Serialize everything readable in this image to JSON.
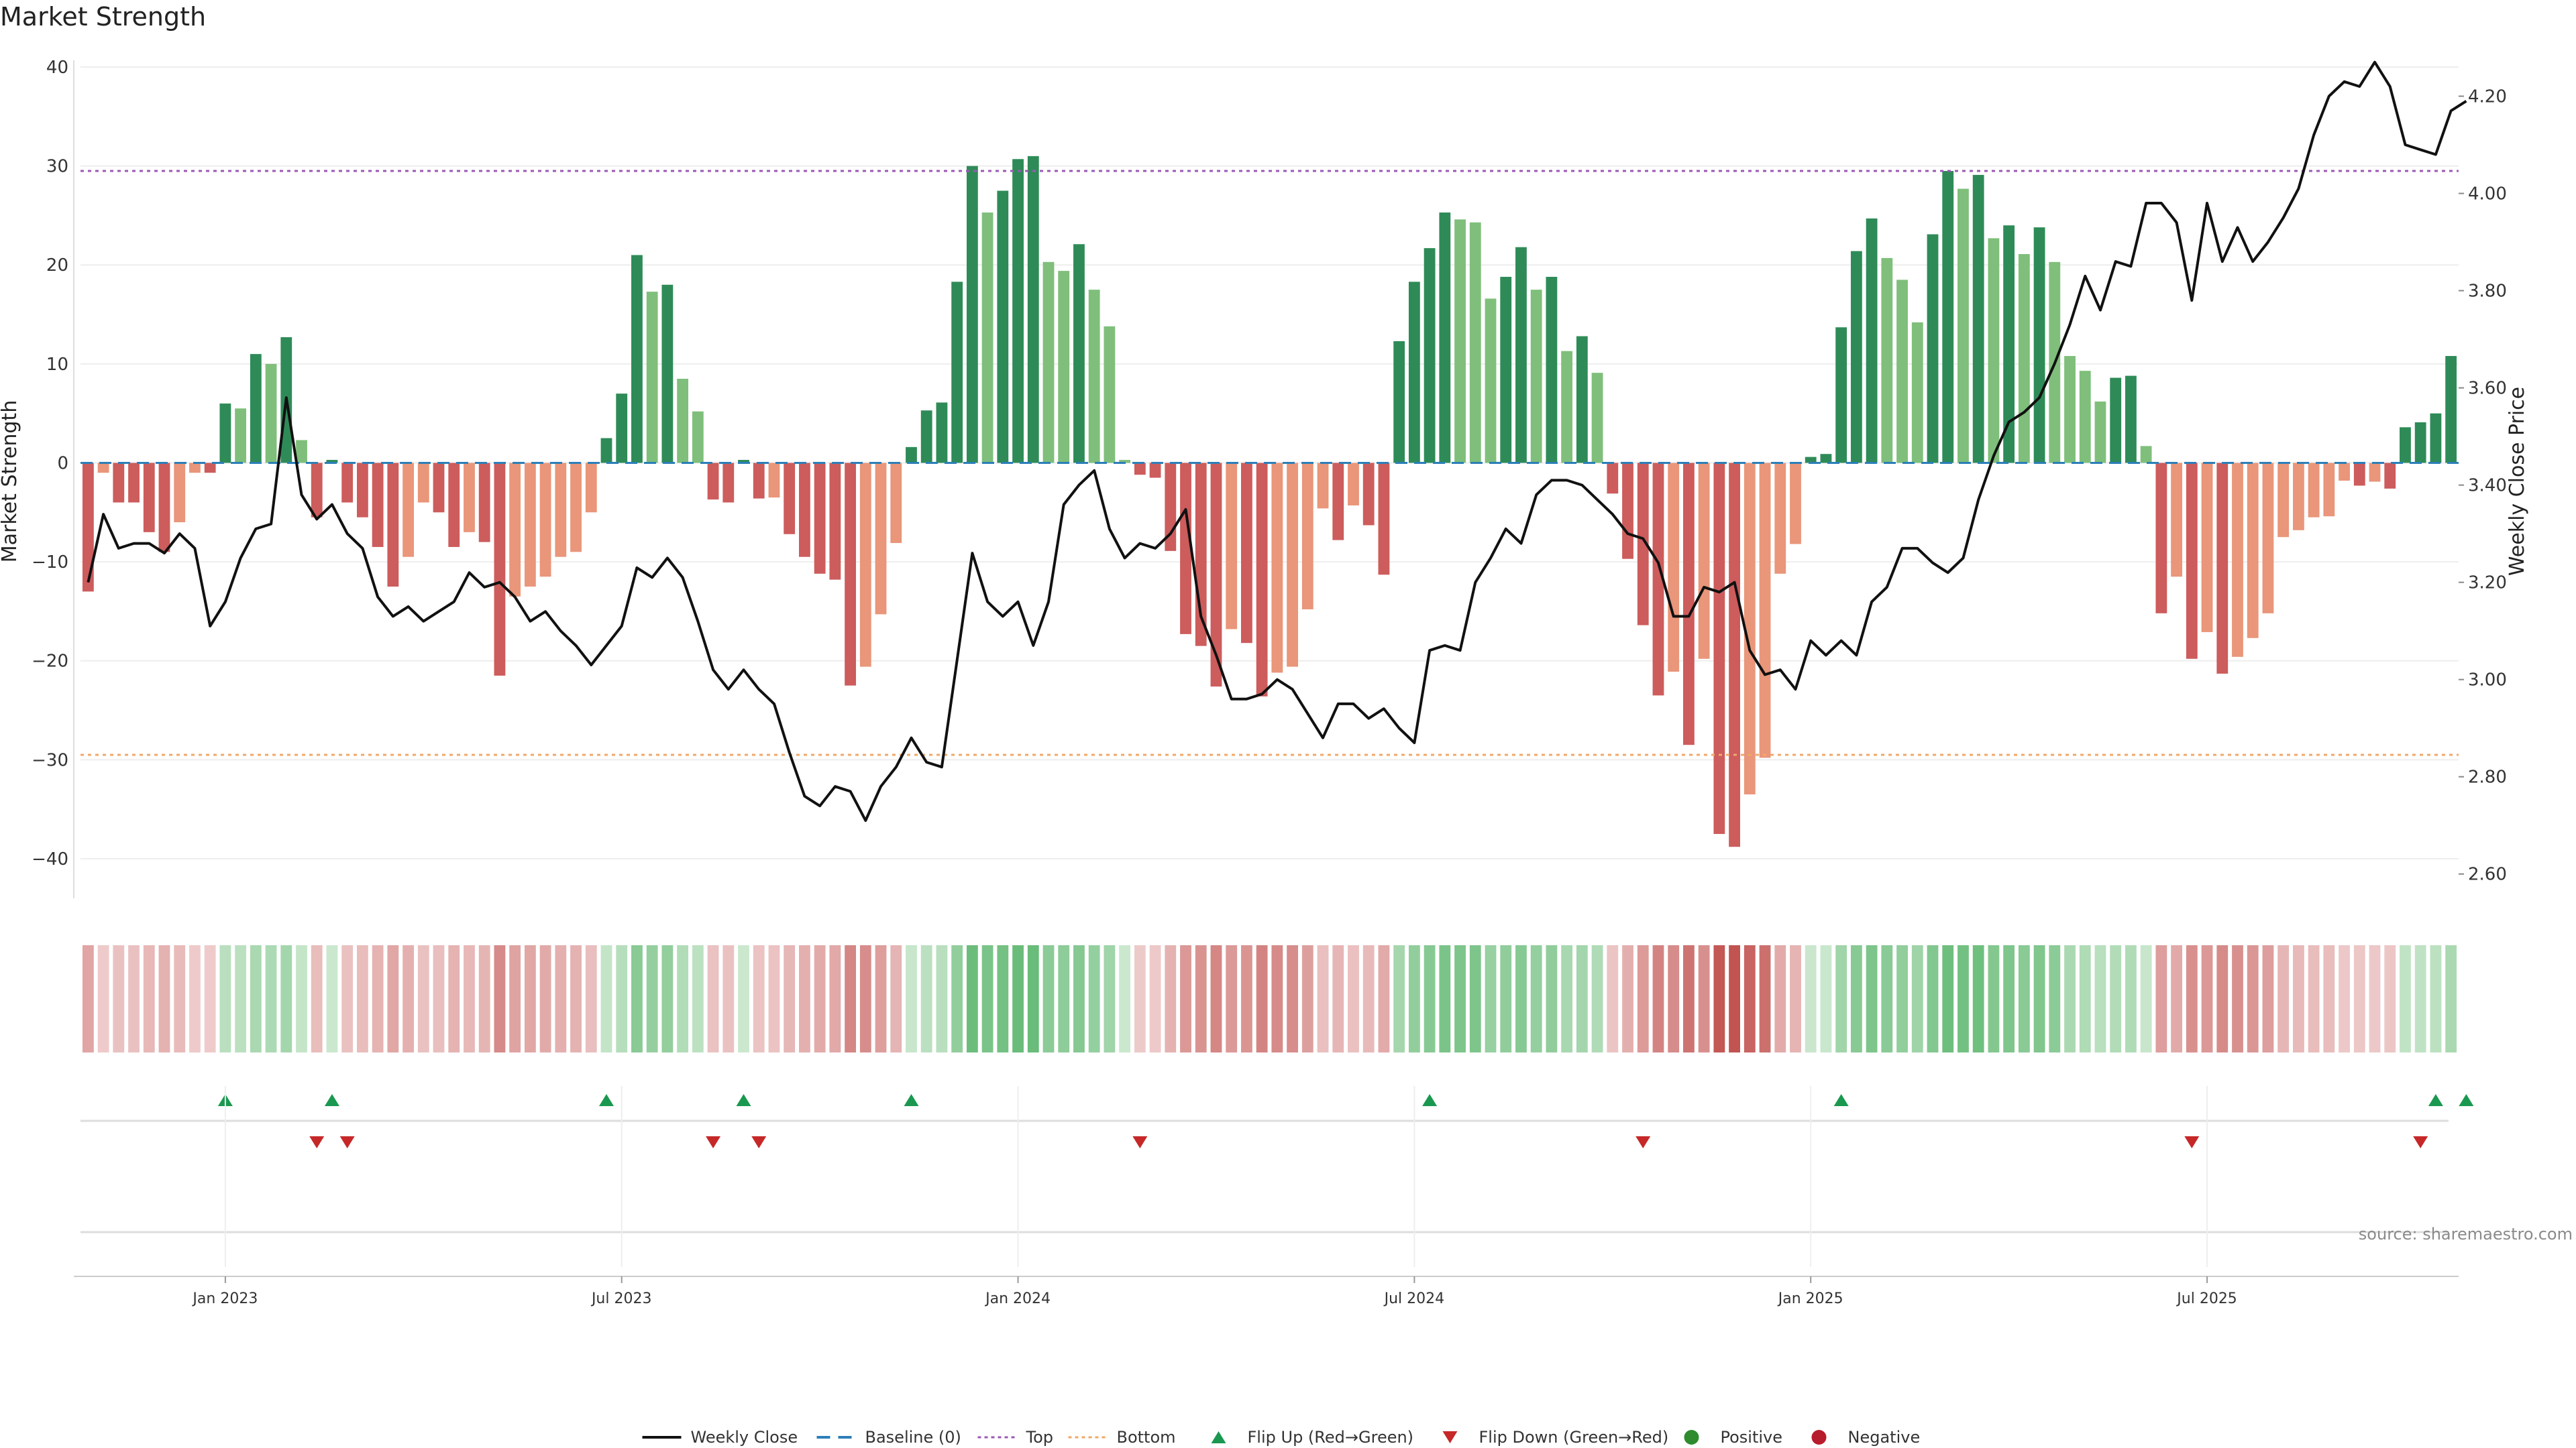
{
  "chart_data": {
    "type": "bar",
    "title": "Market Strength",
    "ylabel_left": "Market Strength",
    "ylabel_right": "Weekly Close Price",
    "source": "source: sharemaestro.com",
    "ylim_left": [
      -44,
      40
    ],
    "yticks_left": [
      40,
      30,
      20,
      10,
      0,
      -10,
      -20,
      -30,
      -40
    ],
    "ytick_labels_left": [
      "40",
      "30",
      "20",
      "10",
      "0",
      "−10",
      "−20",
      "−30",
      "−40"
    ],
    "ylim_right": [
      2.55,
      4.26
    ],
    "yticks_right": [
      4.2,
      4.0,
      3.8,
      3.6,
      3.4,
      3.2,
      3.0,
      2.8,
      2.6
    ],
    "ytick_labels_right": [
      "4.20",
      "4.00",
      "3.80",
      "3.60",
      "3.40",
      "3.20",
      "3.00",
      "2.80",
      "2.60"
    ],
    "x_ticks": [
      {
        "week": 9,
        "label": "Jan 2023"
      },
      {
        "week": 35,
        "label": "Jul 2023"
      },
      {
        "week": 61,
        "label": "Jan 2024"
      },
      {
        "week": 87,
        "label": "Jul 2024"
      },
      {
        "week": 113,
        "label": "Jan 2025"
      },
      {
        "week": 139,
        "label": "Jul 2025"
      }
    ],
    "start_week": "2022-10-31",
    "top_threshold": 29.5,
    "bottom_threshold": -29.5,
    "baseline": 0,
    "colors": {
      "strong_positive": "#2e8b57",
      "weak_positive": "#7fbf7b",
      "strong_negative": "#cd5c5c",
      "weak_negative": "#e9967a",
      "price_line": "#111111",
      "top_line": "#9b59b6",
      "bottom_line": "#f0a868",
      "baseline": "#2c7fb8",
      "flip_up": "#1a9850",
      "flip_down": "#c62828",
      "positive_dot": "#2e8b2e",
      "negative_dot": "#b71c2c"
    },
    "strength": [
      -13,
      -1,
      -4,
      -4,
      -7,
      -9,
      -6,
      -1,
      -1,
      6,
      5.5,
      11,
      10,
      12.7,
      2.3,
      -5.5,
      0.3,
      -4,
      -5.5,
      -8.5,
      -12.5,
      -9.5,
      -4,
      -5,
      -8.5,
      -7,
      -8,
      -21.5,
      -13.5,
      -12.5,
      -11.5,
      -9.5,
      -9,
      -5,
      2.5,
      7,
      21,
      17.3,
      18,
      8.5,
      5.2,
      -3.7,
      -4,
      0.3,
      -3.6,
      -3.5,
      -7.2,
      -9.5,
      -11.2,
      -11.8,
      -22.5,
      -20.6,
      -15.3,
      -8.1,
      1.6,
      5.3,
      6.1,
      18.3,
      30,
      25.3,
      27.5,
      30.7,
      31,
      20.3,
      19.4,
      22.1,
      17.5,
      13.8,
      0.3,
      -1.2,
      -1.5,
      -8.9,
      -17.3,
      -18.5,
      -22.6,
      -16.8,
      -18.2,
      -23.6,
      -21.2,
      -20.6,
      -14.8,
      -4.6,
      -7.8,
      -4.3,
      -6.3,
      -11.3,
      12.3,
      18.3,
      21.7,
      25.3,
      24.6,
      24.3,
      16.6,
      18.8,
      21.8,
      17.5,
      18.8,
      11.3,
      12.8,
      9.1,
      -3.1,
      -9.7,
      -16.4,
      -23.5,
      -21.1,
      -28.5,
      -19.8,
      -37.5,
      -38.8,
      -33.5,
      -29.8,
      -11.2,
      -8.2,
      0.6,
      0.9,
      13.7,
      21.4,
      24.7,
      20.7,
      18.5,
      14.2,
      23.1,
      29.5,
      27.7,
      29.1,
      22.7,
      24,
      21.1,
      23.8,
      20.3,
      10.8,
      9.3,
      6.2,
      8.6,
      8.8,
      1.7,
      -15.2,
      -11.5,
      -19.8,
      -17.1,
      -21.3,
      -19.6,
      -17.7,
      -15.2,
      -7.5,
      -6.8,
      -5.5,
      -5.4,
      -1.8,
      -2.3,
      -1.9,
      -2.6,
      3.6,
      4.1,
      5,
      10.8
    ],
    "price": [
      3.2,
      3.34,
      3.27,
      3.28,
      3.28,
      3.26,
      3.3,
      3.27,
      3.11,
      3.16,
      3.25,
      3.31,
      3.32,
      3.58,
      3.38,
      3.33,
      3.36,
      3.3,
      3.27,
      3.17,
      3.13,
      3.15,
      3.12,
      3.14,
      3.16,
      3.22,
      3.19,
      3.2,
      3.17,
      3.12,
      3.14,
      3.1,
      3.07,
      3.03,
      3.07,
      3.11,
      3.23,
      3.21,
      3.25,
      3.21,
      3.12,
      3.02,
      2.98,
      3.02,
      2.98,
      2.95,
      2.85,
      2.76,
      2.74,
      2.78,
      2.77,
      2.71,
      2.78,
      2.82,
      2.88,
      2.83,
      2.82,
      3.04,
      3.26,
      3.16,
      3.13,
      3.16,
      3.07,
      3.16,
      3.36,
      3.4,
      3.43,
      3.31,
      3.25,
      3.28,
      3.27,
      3.3,
      3.35,
      3.13,
      3.05,
      2.96,
      2.96,
      2.97,
      3,
      2.98,
      2.93,
      2.88,
      2.95,
      2.95,
      2.92,
      2.94,
      2.9,
      2.87,
      3.06,
      3.07,
      3.06,
      3.2,
      3.25,
      3.31,
      3.28,
      3.38,
      3.41,
      3.41,
      3.4,
      3.37,
      3.34,
      3.3,
      3.29,
      3.24,
      3.13,
      3.13,
      3.19,
      3.18,
      3.2,
      3.06,
      3.01,
      3.02,
      2.98,
      3.08,
      3.05,
      3.08,
      3.05,
      3.16,
      3.19,
      3.27,
      3.27,
      3.24,
      3.22,
      3.25,
      3.37,
      3.46,
      3.53,
      3.55,
      3.58,
      3.65,
      3.73,
      3.83,
      3.76,
      3.86,
      3.85,
      3.98,
      3.98,
      3.94,
      3.78,
      3.98,
      3.86,
      3.93,
      3.86,
      3.9,
      3.95,
      4.01,
      4.12,
      4.2,
      4.23,
      4.22,
      4.27,
      4.22,
      4.1,
      4.09,
      4.08,
      4.17,
      4.19
    ],
    "flip_up_weeks": [
      9,
      16,
      34,
      43,
      54,
      88,
      115,
      154,
      156
    ],
    "flip_down_weeks": [
      15,
      17,
      41,
      44,
      69,
      102,
      138,
      153
    ],
    "legend": [
      {
        "key": "line",
        "label": "Weekly Close"
      },
      {
        "key": "baseline",
        "label": "Baseline (0)"
      },
      {
        "key": "top",
        "label": "Top"
      },
      {
        "key": "bottom",
        "label": "Bottom"
      },
      {
        "key": "flipup",
        "label": "Flip Up (Red→Green)"
      },
      {
        "key": "flipdown",
        "label": "Flip Down (Green→Red)"
      },
      {
        "key": "positive",
        "label": "Positive"
      },
      {
        "key": "negative",
        "label": "Negative"
      }
    ]
  }
}
